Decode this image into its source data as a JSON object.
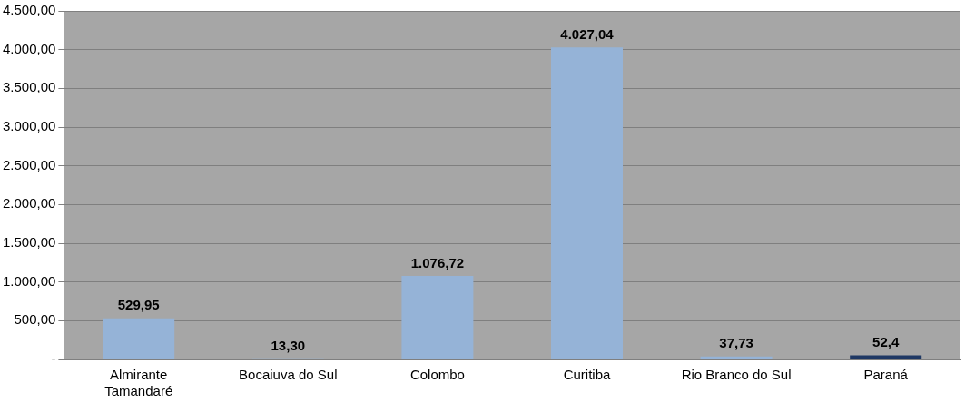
{
  "chart_data": {
    "type": "bar",
    "categories": [
      "Almirante Tamandaré",
      "Bocaiuva do Sul",
      "Colombo",
      "Curitiba",
      "Rio Branco do Sul",
      "Paraná"
    ],
    "values": [
      529.95,
      13.3,
      1076.72,
      4027.04,
      37.73,
      52.4
    ],
    "colors": [
      "#95b3d7",
      "#95b3d7",
      "#95b3d7",
      "#95b3d7",
      "#95b3d7",
      "#1f3864"
    ],
    "value_labels": [
      "529,95",
      "13,30",
      "1.076,72",
      "4.027,04",
      "37,73",
      "52,4"
    ],
    "ylim": [
      0,
      4500
    ],
    "yticks": [
      {
        "value": 0,
        "label": "-"
      },
      {
        "value": 500,
        "label": "500,00"
      },
      {
        "value": 1000,
        "label": "1.000,00"
      },
      {
        "value": 1500,
        "label": "1.500,00"
      },
      {
        "value": 2000,
        "label": "2.000,00"
      },
      {
        "value": 2500,
        "label": "2.500,00"
      },
      {
        "value": 3000,
        "label": "3.000,00"
      },
      {
        "value": 3500,
        "label": "3.500,00"
      },
      {
        "value": 4000,
        "label": "4.000,00"
      },
      {
        "value": 4500,
        "label": "4.500,00"
      }
    ],
    "grid": "y"
  }
}
